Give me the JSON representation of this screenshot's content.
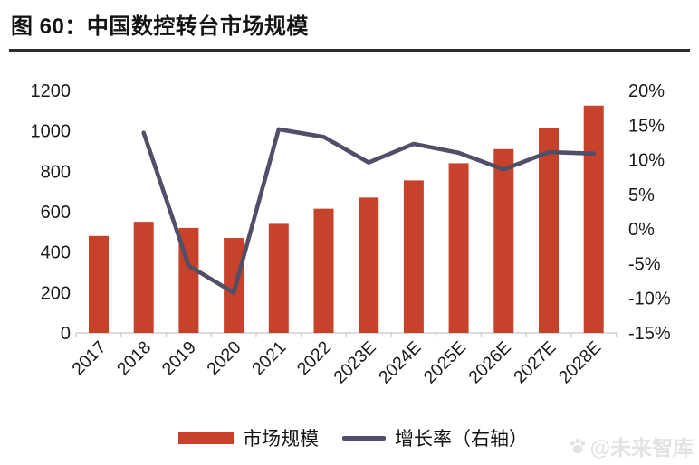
{
  "header": {
    "title": "图 60：中国数控转台市场规模"
  },
  "legend": {
    "items": [
      {
        "label": "市场规模",
        "type": "bar",
        "color": "#C7422A"
      },
      {
        "label": "增长率（右轴）",
        "type": "line",
        "color": "#4F4F68"
      }
    ]
  },
  "watermark": {
    "text": "@未来智库",
    "icon": "paw-icon"
  },
  "colors": {
    "bar": "#C7422A",
    "line": "#4F4F68",
    "axis_text": "#1a1a1a",
    "axis_line": "#cfcfcf"
  },
  "chart_data": {
    "type": "bar+line",
    "title": "中国数控转台市场规模",
    "categories": [
      "2017",
      "2018",
      "2019",
      "2020",
      "2021",
      "2022",
      "2023E",
      "2024E",
      "2025E",
      "2026E",
      "2027E",
      "2028E"
    ],
    "series": [
      {
        "name": "市场规模",
        "type": "bar",
        "axis": "left",
        "color": "#C7422A",
        "values": [
          480,
          550,
          520,
          470,
          540,
          615,
          670,
          755,
          840,
          910,
          1015,
          1125
        ]
      },
      {
        "name": "增长率（右轴）",
        "type": "line",
        "axis": "right",
        "color": "#4F4F68",
        "values": [
          null,
          13.9,
          -5.3,
          -9.2,
          14.4,
          13.3,
          9.6,
          12.3,
          11.0,
          8.6,
          11.1,
          10.9
        ]
      }
    ],
    "left_axis": {
      "ticks": [
        "0",
        "200",
        "400",
        "600",
        "800",
        "1000",
        "1200"
      ],
      "range": [
        0,
        1200
      ]
    },
    "right_axis": {
      "ticks": [
        "-15%",
        "-10%",
        "-5%",
        "0%",
        "5%",
        "10%",
        "15%",
        "20%"
      ],
      "range": [
        -15,
        20
      ]
    },
    "grid": false,
    "legend_position": "bottom"
  }
}
